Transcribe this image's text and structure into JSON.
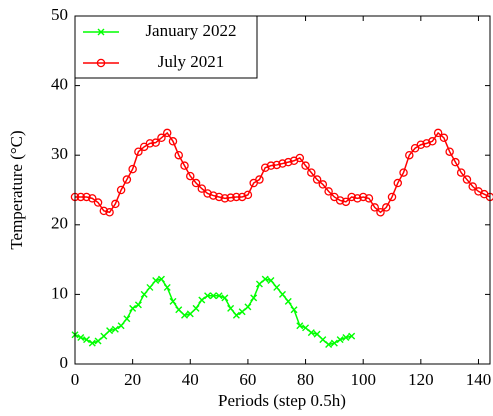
{
  "chart_data": {
    "type": "line",
    "xlabel": "Periods (step 0.5h)",
    "ylabel": "Temperature (°C)",
    "xlim": [
      0,
      144
    ],
    "xticks": [
      0,
      20,
      40,
      60,
      80,
      100,
      120,
      140
    ],
    "ylim": [
      0,
      50
    ],
    "yticks": [
      0,
      10,
      20,
      30,
      40,
      50
    ],
    "grid": false,
    "legend": "upper left",
    "series": [
      {
        "name": "January 2022",
        "color": "#00ff00",
        "marker": "x",
        "x": [
          0,
          2,
          4,
          6,
          8,
          10,
          12,
          14,
          16,
          18,
          20,
          22,
          24,
          26,
          28,
          30,
          32,
          34,
          36,
          38,
          40,
          42,
          44,
          46,
          48,
          50,
          52,
          54,
          56,
          58,
          60,
          62,
          64,
          66,
          68,
          70,
          72,
          74,
          76,
          78,
          80,
          82,
          84,
          86,
          88,
          90,
          92,
          94,
          96
        ],
        "values": [
          4.2,
          3.8,
          3.5,
          3,
          3.3,
          4,
          4.8,
          5,
          5.5,
          6.5,
          8,
          8.5,
          10,
          11,
          12,
          12.2,
          11,
          9,
          7.8,
          7,
          7.2,
          8,
          9.2,
          9.8,
          9.8,
          9.8,
          9.5,
          8,
          7,
          7.5,
          8.2,
          9.5,
          11.5,
          12.2,
          12,
          11,
          10,
          9,
          7.8,
          5.5,
          5.2,
          4.5,
          4.3,
          3.5,
          2.8,
          3,
          3.5,
          3.8,
          4
        ]
      },
      {
        "name": "July 2021",
        "color": "#ff0000",
        "marker": "o",
        "x": [
          0,
          2,
          4,
          6,
          8,
          10,
          12,
          14,
          16,
          18,
          20,
          22,
          24,
          26,
          28,
          30,
          32,
          34,
          36,
          38,
          40,
          42,
          44,
          46,
          48,
          50,
          52,
          54,
          56,
          58,
          60,
          62,
          64,
          66,
          68,
          70,
          72,
          74,
          76,
          78,
          80,
          82,
          84,
          86,
          88,
          90,
          92,
          94,
          96,
          98,
          100,
          102,
          104,
          106,
          108,
          110,
          112,
          114,
          116,
          118,
          120,
          122,
          124,
          126,
          128,
          130,
          132,
          134,
          136,
          138,
          140,
          142,
          144
        ],
        "values": [
          24,
          24,
          24,
          23.8,
          23.2,
          22,
          21.8,
          23,
          25,
          26.5,
          28,
          30.5,
          31.2,
          31.7,
          31.8,
          32.5,
          33.2,
          32,
          30,
          28.5,
          27,
          26,
          25.2,
          24.5,
          24.2,
          24,
          23.8,
          23.9,
          24,
          24,
          24.3,
          26,
          26.5,
          28.2,
          28.5,
          28.6,
          28.8,
          29,
          29.2,
          29.6,
          28.5,
          27.5,
          26.5,
          25.8,
          24.8,
          24,
          23.5,
          23.3,
          24,
          23.8,
          24,
          23.8,
          22.5,
          21.8,
          22.5,
          24,
          26,
          27.5,
          30,
          31,
          31.5,
          31.7,
          32,
          33.2,
          32.5,
          30.5,
          29,
          27.5,
          26.5,
          25.5,
          24.8,
          24.4,
          24
        ]
      }
    ]
  }
}
